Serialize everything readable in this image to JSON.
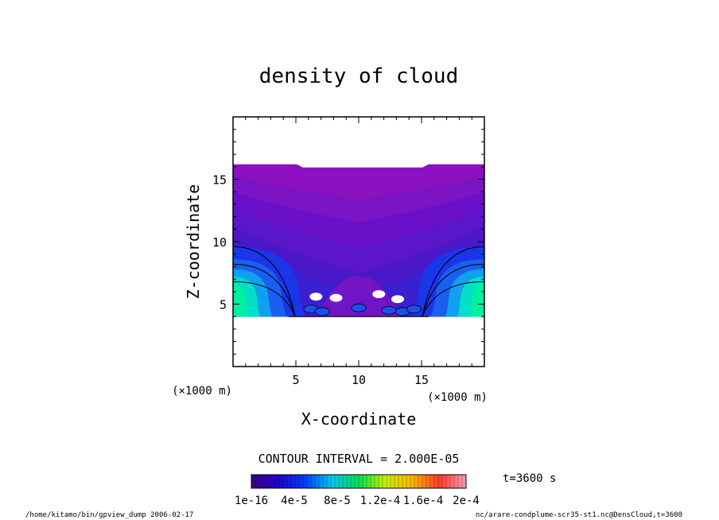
{
  "chart_data": {
    "type": "heatmap",
    "title": "density of cloud",
    "xlabel": "X-coordinate",
    "ylabel": "Z-coordinate",
    "x_unit_label": "(×1000 m)",
    "y_unit_label": "(×1000 m)",
    "xlim": [
      0,
      20
    ],
    "ylim": [
      0,
      20
    ],
    "x_ticks": [
      5,
      10,
      15
    ],
    "y_ticks": [
      5,
      10,
      15
    ],
    "contour_interval_label": "CONTOUR INTERVAL = 2.000E-05",
    "time_label": "t=3600 s",
    "colorbar": {
      "min": 1e-16,
      "max": 0.0002,
      "tick_labels": [
        "1e-16",
        "4e-5",
        "8e-5",
        "1.2e-4",
        "1.6e-4",
        "2e-4"
      ],
      "colors": [
        "#3a0088",
        "#2200cc",
        "#0040ff",
        "#00c8f0",
        "#00e050",
        "#c8f000",
        "#ffb400",
        "#ff3c28",
        "#ff9bb4"
      ]
    },
    "cloud_layer": {
      "bottom_z": 4.0,
      "top_z": 16.2
    },
    "colors": {
      "top_layer": "#8a10c0",
      "upper": "#6a10c8",
      "middle": "#4a18c8",
      "lower": "#2a28e0",
      "core": "#00e0c8",
      "hot": "#00f0a0"
    }
  },
  "footer": {
    "left": "/home/kitamo/bin/gpview_dump  2006-02-17",
    "right": "nc/arare-condplume-scr35-st1.nc@DensCloud,t=3600"
  }
}
